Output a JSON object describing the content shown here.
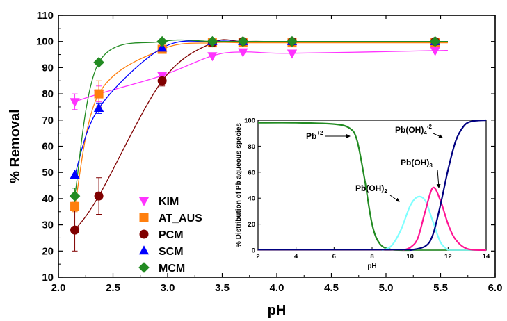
{
  "chart_data": [
    {
      "type": "scatter",
      "xlabel": "pH",
      "ylabel": "% Removal",
      "xlim": [
        2.0,
        6.0
      ],
      "ylim": [
        10,
        110
      ],
      "x_ticks": [
        "2.0",
        "2.5",
        "3.0",
        "3.5",
        "4.0",
        "4.5",
        "5.0",
        "5.5",
        "6.0"
      ],
      "y_ticks": [
        "10",
        "20",
        "30",
        "40",
        "50",
        "60",
        "70",
        "80",
        "90",
        "100",
        "110"
      ],
      "legend_position": "lower-left",
      "series": [
        {
          "name": "KIM",
          "color": "#ff33ff",
          "marker": "triangle-down",
          "x": [
            2.15,
            2.37,
            2.95,
            3.41,
            3.69,
            4.14,
            5.45
          ],
          "y": [
            77,
            80,
            87,
            94.5,
            96,
            95.5,
            96.5
          ],
          "err": [
            3,
            3,
            0,
            0,
            0,
            0,
            0
          ]
        },
        {
          "name": "AT_AUS",
          "color": "#ff7f0e",
          "marker": "square",
          "x": [
            2.15,
            2.37,
            2.95,
            3.41,
            3.69,
            4.14,
            5.45
          ],
          "y": [
            37,
            80,
            97,
            99.5,
            99.5,
            99.5,
            99.5
          ],
          "err": [
            2,
            5,
            1,
            0,
            0,
            0,
            0
          ]
        },
        {
          "name": "PCM",
          "color": "#800000",
          "marker": "circle",
          "x": [
            2.15,
            2.37,
            2.95,
            3.41,
            3.69,
            4.14,
            5.45
          ],
          "y": [
            28,
            41,
            85,
            99.5,
            100,
            100,
            100
          ],
          "err": [
            8,
            7,
            2,
            0,
            0,
            0,
            0
          ]
        },
        {
          "name": "SCM",
          "color": "#0000ff",
          "marker": "triangle-up",
          "x": [
            2.15,
            2.37,
            2.95,
            3.41,
            3.69,
            4.14,
            5.45
          ],
          "y": [
            49,
            74.5,
            97.5,
            100,
            100,
            100,
            100
          ],
          "err": [
            0,
            2,
            0,
            0,
            0,
            0,
            0
          ]
        },
        {
          "name": "MCM",
          "color": "#228b22",
          "marker": "diamond",
          "x": [
            2.15,
            2.37,
            2.95,
            3.41,
            3.69,
            4.14,
            5.45
          ],
          "y": [
            41,
            92,
            100,
            100,
            100,
            100,
            100
          ],
          "err": [
            3,
            0,
            0,
            0,
            0,
            0,
            0
          ]
        }
      ]
    },
    {
      "type": "line",
      "xlabel": "pH",
      "ylabel": "% Distribution of Pb aqueous species",
      "xlim": [
        2,
        14
      ],
      "ylim": [
        0,
        100
      ],
      "x_ticks": [
        "2",
        "4",
        "6",
        "8",
        "10",
        "12",
        "14"
      ],
      "y_ticks": [
        "0",
        "20",
        "40",
        "60",
        "80",
        "100"
      ],
      "series": [
        {
          "name": "Pb+2",
          "color": "#228b22",
          "x": [
            2,
            4,
            6,
            6.8,
            7.2,
            7.6,
            8,
            8.4,
            9,
            10
          ],
          "y": [
            98,
            98,
            97,
            94,
            85,
            55,
            20,
            5,
            0.5,
            0
          ]
        },
        {
          "name": "Pb(OH)2",
          "color": "#7fffff",
          "x": [
            8.5,
            9,
            9.5,
            10,
            10.4,
            10.8,
            11.2,
            11.6,
            12
          ],
          "y": [
            0,
            3,
            15,
            34,
            41,
            38,
            22,
            6,
            0
          ]
        },
        {
          "name": "Pb(OH)3-",
          "color": "#ff1493",
          "x": [
            9.6,
            10,
            10.4,
            10.8,
            11.2,
            11.6,
            12,
            12.4,
            13,
            14
          ],
          "y": [
            0,
            2,
            9,
            30,
            48,
            38,
            20,
            8,
            1,
            0
          ]
        },
        {
          "name": "Pb(OH)4-2",
          "color": "#000080",
          "x": [
            10,
            10.8,
            11.2,
            11.6,
            12,
            12.4,
            12.8,
            13.2,
            14
          ],
          "y": [
            0,
            3,
            12,
            35,
            62,
            84,
            95,
            99,
            100
          ]
        }
      ]
    }
  ],
  "legend_labels": [
    "KIM",
    "AT_AUS",
    "PCM",
    "SCM",
    "MCM"
  ],
  "inset_labels": [
    {
      "base": "Pb",
      "sup": "+2"
    },
    {
      "base": "Pb(OH)",
      "sub": "4",
      "sup": "-2"
    },
    {
      "base": "Pb(OH)",
      "sub": "3"
    },
    {
      "base": "Pb(OH)",
      "sub": "2"
    }
  ]
}
